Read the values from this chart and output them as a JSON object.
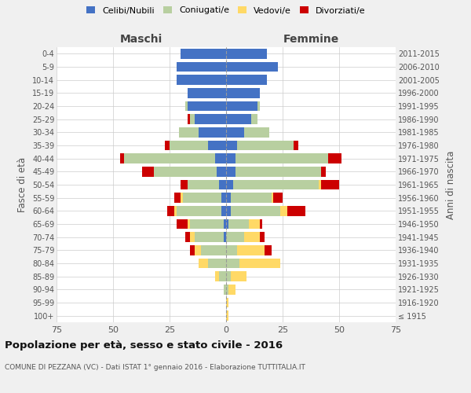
{
  "age_groups": [
    "100+",
    "95-99",
    "90-94",
    "85-89",
    "80-84",
    "75-79",
    "70-74",
    "65-69",
    "60-64",
    "55-59",
    "50-54",
    "45-49",
    "40-44",
    "35-39",
    "30-34",
    "25-29",
    "20-24",
    "15-19",
    "10-14",
    "5-9",
    "0-4"
  ],
  "birth_years": [
    "≤ 1915",
    "1916-1920",
    "1921-1925",
    "1926-1930",
    "1931-1935",
    "1936-1940",
    "1941-1945",
    "1946-1950",
    "1951-1955",
    "1956-1960",
    "1961-1965",
    "1966-1970",
    "1971-1975",
    "1976-1980",
    "1981-1985",
    "1986-1990",
    "1991-1995",
    "1996-2000",
    "2001-2005",
    "2006-2010",
    "2011-2015"
  ],
  "maschi": {
    "celibi": [
      0,
      0,
      0,
      0,
      0,
      0,
      1,
      1,
      2,
      2,
      3,
      4,
      5,
      8,
      12,
      14,
      17,
      17,
      22,
      22,
      20
    ],
    "coniugati": [
      0,
      0,
      1,
      3,
      8,
      11,
      13,
      15,
      20,
      17,
      14,
      28,
      40,
      17,
      9,
      2,
      1,
      0,
      0,
      0,
      0
    ],
    "vedovi": [
      0,
      0,
      0,
      2,
      4,
      3,
      2,
      1,
      1,
      1,
      0,
      0,
      0,
      0,
      0,
      0,
      0,
      0,
      0,
      0,
      0
    ],
    "divorziati": [
      0,
      0,
      0,
      0,
      0,
      2,
      2,
      5,
      3,
      3,
      3,
      5,
      2,
      2,
      0,
      1,
      0,
      0,
      0,
      0,
      0
    ]
  },
  "femmine": {
    "nubili": [
      0,
      0,
      0,
      0,
      0,
      0,
      0,
      1,
      2,
      2,
      3,
      4,
      4,
      5,
      8,
      11,
      14,
      15,
      18,
      23,
      18
    ],
    "coniugate": [
      0,
      0,
      1,
      2,
      6,
      5,
      8,
      9,
      22,
      18,
      38,
      38,
      41,
      25,
      11,
      3,
      1,
      0,
      0,
      0,
      0
    ],
    "vedove": [
      1,
      1,
      3,
      7,
      18,
      12,
      7,
      5,
      3,
      1,
      1,
      0,
      0,
      0,
      0,
      0,
      0,
      0,
      0,
      0,
      0
    ],
    "divorziate": [
      0,
      0,
      0,
      0,
      0,
      3,
      2,
      1,
      8,
      4,
      8,
      2,
      6,
      2,
      0,
      0,
      0,
      0,
      0,
      0,
      0
    ]
  },
  "color_celibi": "#4472c4",
  "color_coniugati": "#b8cfa0",
  "color_vedovi": "#ffd966",
  "color_divorziati": "#cc0000",
  "title": "Popolazione per età, sesso e stato civile - 2016",
  "subtitle": "COMUNE DI PEZZANA (VC) - Dati ISTAT 1° gennaio 2016 - Elaborazione TUTTITALIA.IT",
  "xlabel_left": "Maschi",
  "xlabel_right": "Femmine",
  "ylabel_left": "Fasce di età",
  "ylabel_right": "Anni di nascita",
  "xlim": 75,
  "bg_color": "#f0f0f0",
  "plot_bg": "#ffffff",
  "legend_labels": [
    "Celibi/Nubili",
    "Coniugati/e",
    "Vedovi/e",
    "Divorziati/e"
  ]
}
